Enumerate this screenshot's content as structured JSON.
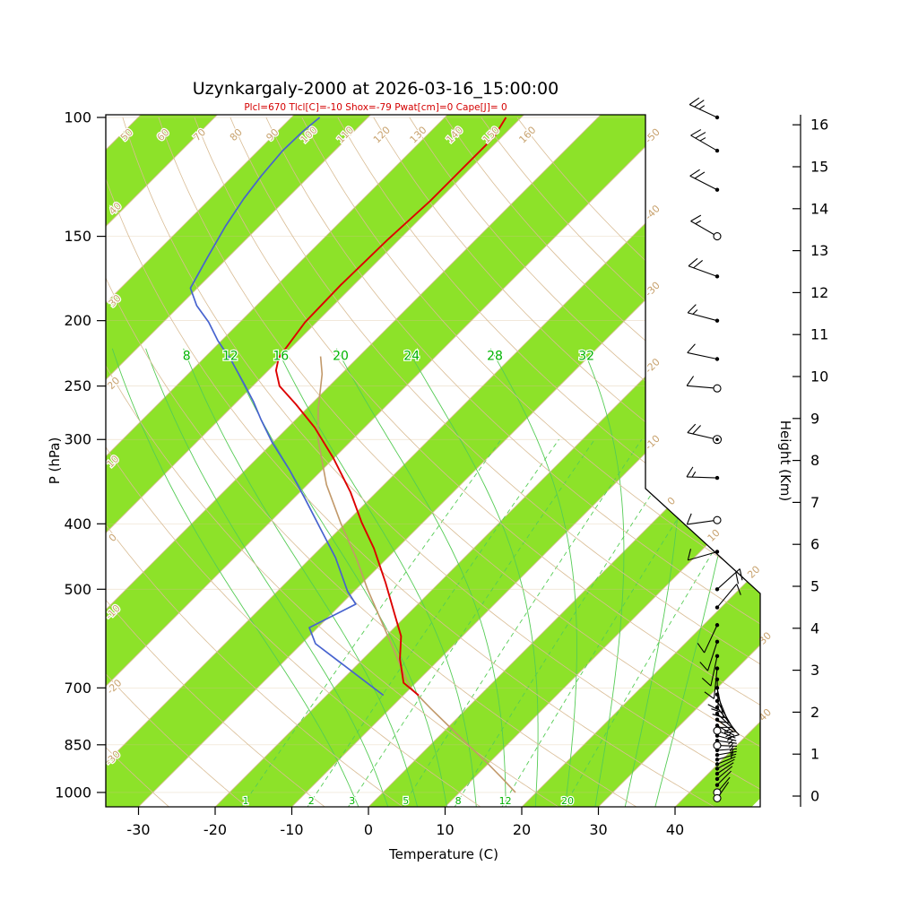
{
  "title": "Uzynkargaly-2000 at 2026-03-16_15:00:00",
  "subtitle": "Plcl=670 Tlcl[C]=-10 Shox=-79 Pwat[cm]=0 Cape[J]= 0",
  "axes": {
    "pressure": {
      "label": "P (hPa)",
      "ticks": [
        100,
        150,
        200,
        250,
        300,
        400,
        500,
        700,
        850,
        1000
      ]
    },
    "temperature": {
      "label": "Temperature (C)",
      "ticks": [
        -30,
        -20,
        -10,
        0,
        10,
        20,
        30,
        40
      ]
    },
    "height": {
      "label": "Height (Km)",
      "ticks": [
        0,
        1,
        2,
        3,
        4,
        5,
        6,
        7,
        8,
        9,
        10,
        11,
        12,
        13,
        14,
        15,
        16
      ]
    }
  },
  "chart_data": {
    "type": "line",
    "subtype": "skew-t-log-p-sounding",
    "station": "Uzynkargaly-2000",
    "time": "2026-03-16_15:00:00",
    "indices": {
      "Plcl": 670,
      "Tlcl_C": -10,
      "Shox": -79,
      "Pwat_cm": 0,
      "Cape_J": 0
    },
    "colors": {
      "stripe": "#8DE229",
      "tan_line": "#D9BC94",
      "tan_label": "#C8A26E",
      "green_line": "#55CC55",
      "green_label": "#00B400",
      "temperature": "#DD0000",
      "dewpoint": "#4763CF",
      "parcel": "#C2996A",
      "frame": "#000000"
    },
    "series": [
      {
        "name": "temperature",
        "color": "#DD0000",
        "units": "p_hPa,T_C",
        "points": [
          [
            718,
            -8
          ],
          [
            688,
            -11.6
          ],
          [
            634,
            -15.2
          ],
          [
            587,
            -18
          ],
          [
            549,
            -21.3
          ],
          [
            489,
            -27
          ],
          [
            435,
            -33
          ],
          [
            398,
            -38
          ],
          [
            359,
            -43.4
          ],
          [
            320,
            -50
          ],
          [
            288,
            -56.5
          ],
          [
            266,
            -62
          ],
          [
            250,
            -66.5
          ],
          [
            237,
            -69
          ],
          [
            227,
            -70.3
          ],
          [
            201,
            -71.5
          ],
          [
            177,
            -71.7
          ],
          [
            152,
            -71.5
          ],
          [
            133,
            -71
          ],
          [
            118,
            -71
          ],
          [
            107,
            -71
          ],
          [
            100,
            -72
          ]
        ]
      },
      {
        "name": "dewpoint",
        "color": "#4763CF",
        "units": "p_hPa,T_C",
        "points": [
          [
            718,
            -12.6
          ],
          [
            602,
            -28.2
          ],
          [
            570,
            -31.1
          ],
          [
            526,
            -28.1
          ],
          [
            504,
            -30.8
          ],
          [
            449,
            -36.8
          ],
          [
            407,
            -42.5
          ],
          [
            367,
            -48.5
          ],
          [
            332,
            -54.4
          ],
          [
            303,
            -60.1
          ],
          [
            280,
            -64.6
          ],
          [
            264,
            -67.8
          ],
          [
            249,
            -71.2
          ],
          [
            230,
            -75.9
          ],
          [
            214,
            -80.5
          ],
          [
            201,
            -84.1
          ],
          [
            190,
            -87.8
          ],
          [
            179,
            -90.9
          ],
          [
            161,
            -92.7
          ],
          [
            145,
            -94.4
          ],
          [
            132,
            -95.6
          ],
          [
            122,
            -96.3
          ],
          [
            112,
            -96.8
          ],
          [
            105,
            -96.7
          ],
          [
            100,
            -96.3
          ]
        ]
      },
      {
        "name": "parcel",
        "color": "#C2996A",
        "units": "p_hPa,T_C",
        "points": [
          [
            1000,
            17.3
          ],
          [
            950,
            13.5
          ],
          [
            900,
            9.4
          ],
          [
            850,
            4.9
          ],
          [
            800,
            0.2
          ],
          [
            750,
            -4.8
          ],
          [
            700,
            -10.0
          ],
          [
            670,
            -12.5
          ],
          [
            600,
            -18.5
          ],
          [
            500,
            -28.5
          ],
          [
            450,
            -34
          ],
          [
            400,
            -40.5
          ],
          [
            350,
            -47.5
          ],
          [
            300,
            -54.5
          ],
          [
            270,
            -58.5
          ],
          [
            240,
            -62.5
          ],
          [
            226,
            -65
          ]
        ]
      }
    ],
    "guides": {
      "dry_adiabats": [
        -30,
        -20,
        -10,
        0,
        10,
        20,
        30,
        40,
        50,
        60,
        70,
        80,
        90,
        100,
        110,
        120,
        130,
        140,
        150,
        160
      ],
      "moist_adiabats_drawn": [
        0,
        4,
        8,
        12,
        16,
        20,
        24,
        28,
        32,
        36,
        40
      ],
      "moist_adiabats_labeled": [
        8,
        12,
        16,
        20,
        24,
        28,
        32
      ],
      "mixing_ratio_g_kg": [
        1,
        2,
        3,
        5,
        8,
        12,
        20
      ],
      "isotherm_step_C": 10,
      "isotherm_labels": [
        -50,
        -40,
        -30,
        -20,
        -10,
        0,
        10,
        20,
        30,
        40
      ]
    },
    "wind_barbs": [
      {
        "p": 100,
        "speed": 25,
        "dir": 295,
        "marker": "dot"
      },
      {
        "p": 112,
        "speed": 25,
        "dir": 300,
        "marker": "dot"
      },
      {
        "p": 128,
        "speed": 20,
        "dir": 297,
        "marker": "dot"
      },
      {
        "p": 150,
        "speed": 15,
        "dir": 300,
        "marker": "circle"
      },
      {
        "p": 172,
        "speed": 20,
        "dir": 290,
        "marker": "dot"
      },
      {
        "p": 200,
        "speed": 15,
        "dir": 285,
        "marker": "dot"
      },
      {
        "p": 228,
        "speed": 8,
        "dir": 282,
        "marker": "dot"
      },
      {
        "p": 252,
        "speed": 10,
        "dir": 275,
        "marker": "circle"
      },
      {
        "p": 300,
        "speed": 20,
        "dir": 283,
        "marker": "circledot"
      },
      {
        "p": 342,
        "speed": 15,
        "dir": 272,
        "marker": "dot"
      },
      {
        "p": 395,
        "speed": 10,
        "dir": 262,
        "marker": "circle"
      },
      {
        "p": 440,
        "speed": 10,
        "dir": 254,
        "marker": "dot"
      },
      {
        "p": 500,
        "speed": 20,
        "dir": 48,
        "marker": "dot"
      },
      {
        "p": 532,
        "speed": 10,
        "dir": 40,
        "marker": "dot"
      },
      {
        "p": 565,
        "speed": 8,
        "dir": 205,
        "marker": "dot"
      },
      {
        "p": 598,
        "speed": 8,
        "dir": 198,
        "marker": "dot"
      },
      {
        "p": 628,
        "speed": 10,
        "dir": 192,
        "marker": "dot"
      },
      {
        "p": 655,
        "speed": 8,
        "dir": 186,
        "marker": "dot"
      },
      {
        "p": 680,
        "speed": 8,
        "dir": 178,
        "marker": "dot"
      },
      {
        "p": 700,
        "speed": 18,
        "dir": 168,
        "marker": "dot"
      },
      {
        "p": 716,
        "speed": 15,
        "dir": 158,
        "marker": "dot"
      },
      {
        "p": 732,
        "speed": 12,
        "dir": 150,
        "marker": "dot"
      },
      {
        "p": 748,
        "speed": 10,
        "dir": 142,
        "marker": "dot"
      },
      {
        "p": 764,
        "speed": 8,
        "dir": 134,
        "marker": "dot"
      },
      {
        "p": 780,
        "speed": 6,
        "dir": 127,
        "marker": "dot"
      },
      {
        "p": 796,
        "speed": 5,
        "dir": 120,
        "marker": "dot"
      },
      {
        "p": 810,
        "speed": 5,
        "dir": 112,
        "marker": "circle"
      },
      {
        "p": 824,
        "speed": 4,
        "dir": 105,
        "marker": "dot"
      },
      {
        "p": 838,
        "speed": 4,
        "dir": 98,
        "marker": "dot"
      },
      {
        "p": 852,
        "speed": 3,
        "dir": 92,
        "marker": "circle"
      },
      {
        "p": 866,
        "speed": 3,
        "dir": 86,
        "marker": "dot"
      },
      {
        "p": 880,
        "speed": 3,
        "dir": 80,
        "marker": "dot"
      },
      {
        "p": 894,
        "speed": 2,
        "dir": 74,
        "marker": "dot"
      },
      {
        "p": 908,
        "speed": 2,
        "dir": 68,
        "marker": "dot"
      },
      {
        "p": 922,
        "speed": 2,
        "dir": 62,
        "marker": "dot"
      },
      {
        "p": 938,
        "speed": 2,
        "dir": 56,
        "marker": "dot"
      },
      {
        "p": 955,
        "speed": 2,
        "dir": 50,
        "marker": "dot"
      },
      {
        "p": 975,
        "speed": 1,
        "dir": 45,
        "marker": "dot"
      },
      {
        "p": 1000,
        "speed": 1,
        "dir": 40,
        "marker": "circle"
      },
      {
        "p": 1020,
        "speed": 1,
        "dir": 35,
        "marker": "circle"
      }
    ]
  }
}
